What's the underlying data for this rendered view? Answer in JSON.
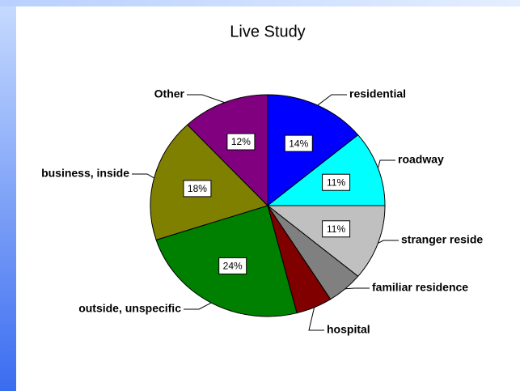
{
  "chart_data": {
    "type": "pie",
    "title": "Live Study",
    "categories": [
      "residential",
      "roadway",
      "stranger reside",
      "familiar residence",
      "hospital",
      "outside, unspecific",
      "business, inside",
      "Other"
    ],
    "values": [
      14,
      11,
      11,
      5,
      5,
      24,
      18,
      12
    ],
    "value_labels": [
      "14%",
      "11%",
      "11%",
      null,
      null,
      "24%",
      "18%",
      "12%"
    ],
    "colors": [
      "#0000ff",
      "#00ffff",
      "#c0c0c0",
      "#808080",
      "#800000",
      "#008000",
      "#808000",
      "#800080"
    ]
  }
}
